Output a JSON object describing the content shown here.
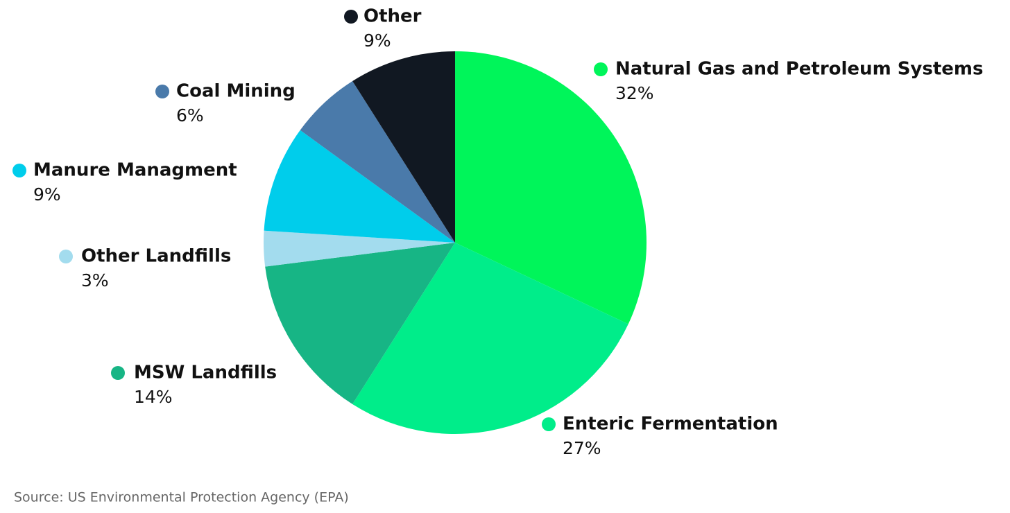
{
  "chart_data": {
    "type": "pie",
    "categories": [
      "Natural Gas and Petroleum Systems",
      "Enteric Fermentation",
      "MSW Landfills",
      "Other Landfills",
      "Manure Managment",
      "Coal Mining",
      "Other"
    ],
    "values": [
      32,
      27,
      14,
      3,
      9,
      6,
      9
    ],
    "value_labels": [
      "32%",
      "27%",
      "14%",
      "3%",
      "9%",
      "6%",
      "9%"
    ],
    "colors": [
      "#00f55a",
      "#00ed8a",
      "#17b585",
      "#a3dcee",
      "#00cdeb",
      "#4a7aaa",
      "#111822"
    ],
    "source": "Source: US Environmental Protection Agency (EPA)"
  }
}
